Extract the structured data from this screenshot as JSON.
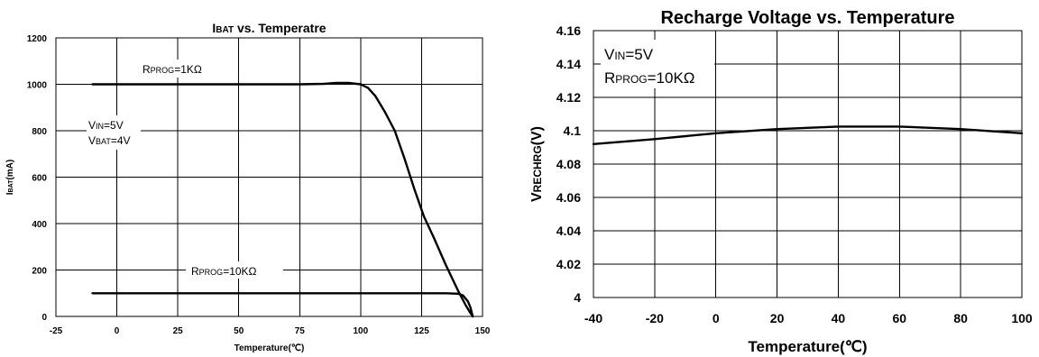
{
  "chart_data": [
    {
      "type": "line",
      "title": "IBAT vs. Temperatre",
      "title_sub": "BAT",
      "xlabel": "Temperature(℃)",
      "ylabel": "IBAT(mA)",
      "ylabel_sub": "BAT",
      "xlim": [
        -25,
        150
      ],
      "ylim": [
        0,
        1200
      ],
      "x_ticks": [
        -25,
        0,
        25,
        50,
        75,
        100,
        125,
        150
      ],
      "y_ticks": [
        0,
        200,
        400,
        600,
        800,
        1000,
        1200
      ],
      "grid": true,
      "series": [
        {
          "name": "RPROG=1KΩ",
          "x": [
            -10,
            0,
            25,
            50,
            75,
            85,
            90,
            95,
            100,
            103,
            106,
            110,
            114,
            118,
            122,
            126,
            130,
            135,
            140,
            143,
            145,
            146
          ],
          "y": [
            1000,
            1000,
            1000,
            1000,
            1000,
            1002,
            1006,
            1006,
            1000,
            985,
            950,
            880,
            800,
            680,
            550,
            430,
            340,
            220,
            110,
            50,
            15,
            0
          ]
        },
        {
          "name": "RPROG=10KΩ",
          "x": [
            -10,
            0,
            25,
            50,
            75,
            100,
            125,
            135,
            140,
            142,
            144,
            145,
            146
          ],
          "y": [
            100,
            100,
            100,
            100,
            100,
            100,
            100,
            100,
            98,
            90,
            65,
            40,
            0
          ]
        }
      ],
      "annotations": [
        {
          "text": "RPROG=1KΩ",
          "main": "R",
          "sub": "PROG",
          "rest": "=1KΩ"
        },
        {
          "text": "RPROG=10KΩ",
          "main": "R",
          "sub": "PROG",
          "rest": "=10KΩ"
        },
        {
          "text": "VIN=5V",
          "main": "V",
          "sub": "IN",
          "rest": "=5V"
        },
        {
          "text": "VBAT=4V",
          "main": "V",
          "sub": "BAT",
          "rest": "=4V"
        }
      ]
    },
    {
      "type": "line",
      "title": "Recharge Voltage vs. Temperature",
      "xlabel": "Temperature(℃)",
      "ylabel": "VRECHRG(V)",
      "ylabel_sub": "RECHRG",
      "xlim": [
        -40,
        100
      ],
      "ylim": [
        4.0,
        4.16
      ],
      "x_ticks": [
        -40,
        -20,
        0,
        20,
        40,
        60,
        80,
        100
      ],
      "y_ticks": [
        "4",
        "4.02",
        "4.04",
        "4.06",
        "4.08",
        "4.1",
        "4.12",
        "4.14",
        "4.16"
      ],
      "grid": true,
      "series": [
        {
          "x": [
            -40,
            -20,
            0,
            20,
            40,
            60,
            80,
            100
          ],
          "y": [
            4.092,
            4.095,
            4.0985,
            4.101,
            4.1025,
            4.1025,
            4.101,
            4.0985
          ]
        }
      ],
      "annotations": [
        {
          "text": "VIN=5V",
          "main": "V",
          "sub": "IN",
          "rest": "=5V"
        },
        {
          "text": "RPROG=10KΩ",
          "main": "R",
          "sub": "PROG",
          "rest": "=10KΩ"
        }
      ]
    }
  ]
}
